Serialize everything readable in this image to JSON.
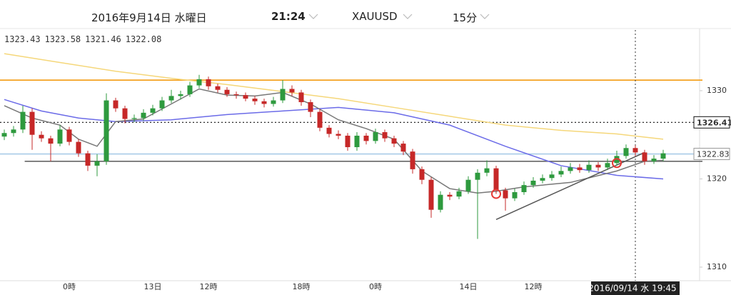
{
  "header": {
    "date": "2016年9月14日 水曜日",
    "time": "21:24",
    "symbol": "XAUUSD",
    "timeframe": "15分"
  },
  "chart_data": {
    "type": "candlestick",
    "ohlc_readout": [
      1323.43,
      1323.58,
      1321.46,
      1322.08
    ],
    "categories": [
      null,
      null,
      null,
      null,
      null,
      null,
      null,
      "0時",
      null,
      null,
      null,
      null,
      null,
      null,
      null,
      null,
      "13日",
      null,
      null,
      null,
      null,
      null,
      "12時",
      null,
      null,
      null,
      null,
      null,
      null,
      null,
      null,
      null,
      "18時",
      null,
      null,
      null,
      null,
      null,
      null,
      null,
      "0時",
      null,
      null,
      null,
      null,
      null,
      null,
      null,
      null,
      null,
      "14日",
      null,
      null,
      null,
      null,
      null,
      null,
      "12時",
      null,
      null,
      null,
      null,
      null,
      null,
      null,
      null,
      null,
      null,
      null,
      null,
      null,
      null
    ],
    "crosshair_label": "2016/09/14 水 19:45",
    "crosshair_index": 68,
    "open": [
      1324.8,
      1325.2,
      1325.6,
      1327.6,
      1325.0,
      1324.6,
      1324.0,
      1325.6,
      1324.2,
      1322.9,
      1321.5,
      1322.0,
      1328.9,
      1328.0,
      1326.8,
      1326.9,
      1327.5,
      1328.0,
      1328.9,
      1329.4,
      1329.6,
      1330.6,
      1331.3,
      1330.5,
      1330.1,
      1329.6,
      1329.5,
      1329.1,
      1328.8,
      1328.5,
      1328.9,
      1330.2,
      1329.8,
      1328.7,
      1327.6,
      1325.8,
      1325.1,
      1324.9,
      1323.6,
      1324.9,
      1324.3,
      1325.3,
      1324.6,
      1324.0,
      1323.1,
      1321.1,
      1319.9,
      1316.5,
      1318.2,
      1318.0,
      1318.6,
      1319.9,
      1320.7,
      1321.2,
      1318.7,
      1317.8,
      1318.5,
      1319.3,
      1319.8,
      1320.1,
      1320.5,
      1320.9,
      1321.3,
      1321.0,
      1321.6,
      1321.3,
      1321.8,
      1322.6,
      1323.5,
      1323.0,
      1322.0,
      1322.3
    ],
    "high": [
      1325.6,
      1326.0,
      1328.3,
      1328.0,
      1325.4,
      1324.9,
      1326.1,
      1325.9,
      1324.5,
      1323.2,
      1322.8,
      1329.7,
      1329.2,
      1328.3,
      1327.3,
      1327.9,
      1328.4,
      1329.3,
      1330.1,
      1330.0,
      1331.0,
      1331.8,
      1331.6,
      1330.8,
      1330.4,
      1329.9,
      1329.8,
      1329.4,
      1329.1,
      1329.3,
      1331.2,
      1330.6,
      1330.1,
      1329.0,
      1327.9,
      1326.1,
      1325.5,
      1325.2,
      1325.3,
      1325.2,
      1325.7,
      1325.6,
      1324.9,
      1324.3,
      1323.4,
      1321.4,
      1320.2,
      1318.6,
      1318.5,
      1319.0,
      1320.3,
      1321.1,
      1322.1,
      1321.5,
      1319.0,
      1318.9,
      1319.7,
      1320.2,
      1320.5,
      1320.9,
      1321.4,
      1321.8,
      1321.7,
      1322.1,
      1321.9,
      1322.3,
      1323.2,
      1323.9,
      1323.8,
      1323.3,
      1322.7,
      1323.3
    ],
    "low": [
      1324.4,
      1324.8,
      1325.2,
      1323.3,
      1324.2,
      1322.0,
      1323.7,
      1323.8,
      1322.5,
      1320.9,
      1320.3,
      1321.6,
      1327.6,
      1326.3,
      1326.4,
      1326.6,
      1327.2,
      1327.7,
      1328.6,
      1329.0,
      1329.3,
      1330.3,
      1330.1,
      1329.8,
      1329.3,
      1329.1,
      1328.8,
      1328.4,
      1328.1,
      1328.2,
      1328.6,
      1329.4,
      1328.3,
      1327.0,
      1325.4,
      1324.7,
      1324.5,
      1323.2,
      1323.2,
      1323.9,
      1324.0,
      1324.2,
      1323.6,
      1322.7,
      1320.6,
      1319.4,
      1315.6,
      1316.2,
      1317.6,
      1317.7,
      1318.3,
      1313.2,
      1320.3,
      1318.3,
      1316.4,
      1317.5,
      1318.2,
      1319.0,
      1319.5,
      1319.8,
      1320.2,
      1320.6,
      1320.7,
      1320.7,
      1320.9,
      1321.0,
      1321.5,
      1322.3,
      1322.6,
      1321.6,
      1321.7,
      1322.0
    ],
    "close": [
      1325.2,
      1325.6,
      1327.6,
      1325.0,
      1324.6,
      1324.0,
      1325.6,
      1324.2,
      1322.9,
      1321.5,
      1322.0,
      1328.9,
      1328.0,
      1326.8,
      1326.9,
      1327.5,
      1328.0,
      1328.9,
      1329.4,
      1329.6,
      1330.6,
      1331.3,
      1330.5,
      1330.1,
      1329.6,
      1329.5,
      1329.1,
      1328.8,
      1328.5,
      1328.9,
      1330.2,
      1329.8,
      1328.7,
      1327.6,
      1325.8,
      1325.1,
      1324.9,
      1323.6,
      1324.9,
      1324.3,
      1325.3,
      1324.6,
      1324.0,
      1323.1,
      1321.1,
      1319.9,
      1316.5,
      1318.2,
      1318.0,
      1318.6,
      1319.9,
      1320.7,
      1321.2,
      1318.7,
      1317.8,
      1318.5,
      1319.3,
      1319.8,
      1320.1,
      1320.5,
      1320.9,
      1321.3,
      1321.0,
      1321.6,
      1321.3,
      1321.8,
      1322.6,
      1323.5,
      1323.0,
      1322.0,
      1322.3,
      1322.9
    ],
    "up_color": "#2e9a3e",
    "down_color": "#c62828",
    "lines": [
      {
        "color": "#f5d77a",
        "x": [
          0,
          6,
          12,
          18,
          24,
          30,
          36,
          42,
          48,
          54,
          60,
          66,
          71
        ],
        "values": [
          1334.2,
          1333.2,
          1332.2,
          1331.4,
          1330.7,
          1329.9,
          1329.1,
          1328.1,
          1327.1,
          1326.1,
          1325.5,
          1325.1,
          1324.5
        ]
      },
      {
        "color": "#6b6be8",
        "x": [
          0,
          4,
          8,
          12,
          18,
          24,
          30,
          36,
          42,
          48,
          54,
          60,
          66,
          71
        ],
        "values": [
          1329.0,
          1327.7,
          1326.9,
          1326.5,
          1326.7,
          1327.3,
          1327.7,
          1328.1,
          1327.5,
          1326.1,
          1323.7,
          1321.5,
          1320.4,
          1320.0
        ]
      },
      {
        "color": "#777777",
        "x": [
          0,
          3,
          6,
          8,
          10,
          12,
          15,
          18,
          21,
          24,
          27,
          30,
          33,
          36,
          39,
          42,
          45,
          48,
          51,
          53,
          56,
          61,
          66,
          69,
          71
        ],
        "values": [
          1328.3,
          1326.9,
          1326.1,
          1324.5,
          1323.7,
          1326.5,
          1326.8,
          1328.5,
          1330.2,
          1329.5,
          1329.4,
          1329.8,
          1328.5,
          1326.7,
          1325.7,
          1324.5,
          1320.9,
          1318.9,
          1318.4,
          1318.6,
          1319.1,
          1319.6,
          1320.9,
          1322.0,
          1322.1
        ]
      },
      {
        "color": "#555555",
        "x": [
          53,
          69
        ],
        "values": [
          1315.4,
          1323.0
        ]
      }
    ],
    "levels": [
      {
        "value": 1331.2,
        "color": "#f39c12",
        "dash": false,
        "show_label": false,
        "x_from": 0
      },
      {
        "value": 1326.41,
        "color": "#111111",
        "dash": true,
        "show_label": true,
        "x_from": 0
      },
      {
        "value": 1322.83,
        "color": "#a8cbe8",
        "dash": false,
        "show_label": true,
        "x_from": 0
      },
      {
        "value": 1322.0,
        "color": "#666666",
        "dash": false,
        "show_label": false,
        "x_from": 2.2
      }
    ],
    "markers": {
      "color": "#e53935",
      "x": [
        53,
        66
      ],
      "values": [
        1318.3,
        1321.8
      ]
    },
    "ylim": [
      1308.46,
      1336.88
    ],
    "yticks": [
      1310,
      1320,
      1330
    ]
  }
}
